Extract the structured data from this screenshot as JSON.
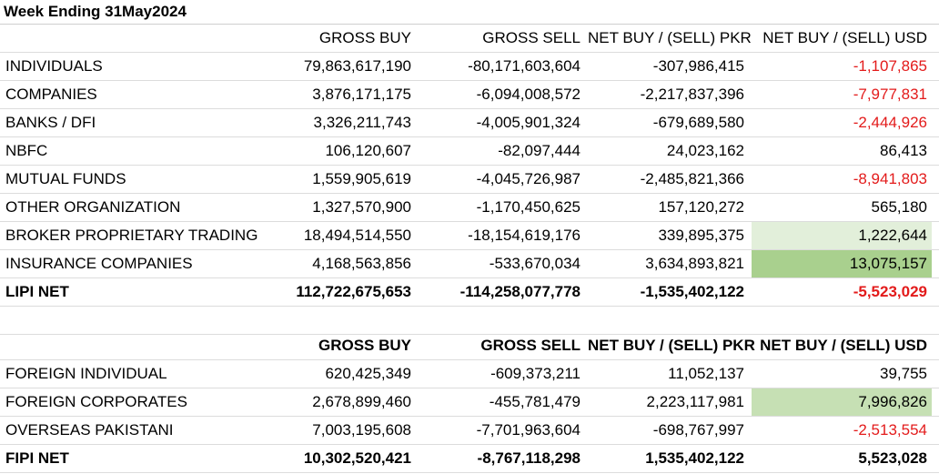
{
  "title": "Week Ending 31May2024",
  "lipi": {
    "headers": [
      "",
      "GROSS BUY",
      "GROSS SELL",
      "NET BUY / (SELL) PKR",
      "NET BUY / (SELL) USD"
    ],
    "rows": [
      {
        "name": "INDIVIDUALS",
        "gross_buy": "79,863,617,190",
        "gross_sell": "-80,171,603,604",
        "net_pkr": "-307,986,415",
        "net_usd": "-1,107,865"
      },
      {
        "name": "COMPANIES",
        "gross_buy": "3,876,171,175",
        "gross_sell": "-6,094,008,572",
        "net_pkr": "-2,217,837,396",
        "net_usd": "-7,977,831"
      },
      {
        "name": "BANKS / DFI",
        "gross_buy": "3,326,211,743",
        "gross_sell": "-4,005,901,324",
        "net_pkr": "-679,689,580",
        "net_usd": "-2,444,926"
      },
      {
        "name": "NBFC",
        "gross_buy": "106,120,607",
        "gross_sell": "-82,097,444",
        "net_pkr": "24,023,162",
        "net_usd": "86,413"
      },
      {
        "name": "MUTUAL FUNDS",
        "gross_buy": "1,559,905,619",
        "gross_sell": "-4,045,726,987",
        "net_pkr": "-2,485,821,366",
        "net_usd": "-8,941,803"
      },
      {
        "name": "OTHER ORGANIZATION",
        "gross_buy": "1,327,570,900",
        "gross_sell": "-1,170,450,625",
        "net_pkr": "157,120,272",
        "net_usd": "565,180"
      },
      {
        "name": "BROKER PROPRIETARY TRADING",
        "gross_buy": "18,494,514,550",
        "gross_sell": "-18,154,619,176",
        "net_pkr": "339,895,375",
        "net_usd": "1,222,644"
      },
      {
        "name": "INSURANCE COMPANIES",
        "gross_buy": "4,168,563,856",
        "gross_sell": "-533,670,034",
        "net_pkr": "3,634,893,821",
        "net_usd": "13,075,157"
      }
    ],
    "total": {
      "name": "LIPI NET",
      "gross_buy": "112,722,675,653",
      "gross_sell": "-114,258,077,778",
      "net_pkr": "-1,535,402,122",
      "net_usd": "-5,523,029"
    }
  },
  "fipi": {
    "headers": [
      "",
      "GROSS BUY",
      "GROSS SELL",
      "NET BUY / (SELL) PKR",
      "NET BUY / (SELL) USD"
    ],
    "rows": [
      {
        "name": "FOREIGN INDIVIDUAL",
        "gross_buy": "620,425,349",
        "gross_sell": "-609,373,211",
        "net_pkr": "11,052,137",
        "net_usd": "39,755"
      },
      {
        "name": "FOREIGN CORPORATES",
        "gross_buy": "2,678,899,460",
        "gross_sell": "-455,781,479",
        "net_pkr": "2,223,117,981",
        "net_usd": "7,996,826"
      },
      {
        "name": "OVERSEAS PAKISTANI",
        "gross_buy": "7,003,195,608",
        "gross_sell": "-7,701,963,604",
        "net_pkr": "-698,767,997",
        "net_usd": "-2,513,554"
      }
    ],
    "total": {
      "name": "FIPI NET",
      "gross_buy": "10,302,520,421",
      "gross_sell": "-8,767,118,298",
      "net_pkr": "1,535,402,122",
      "net_usd": "5,523,028"
    }
  },
  "colors": {
    "negative": "#e31b1b",
    "highlight_light": "#e2efda",
    "highlight_mid": "#c6e0b4",
    "highlight_dark": "#a9d08e"
  }
}
